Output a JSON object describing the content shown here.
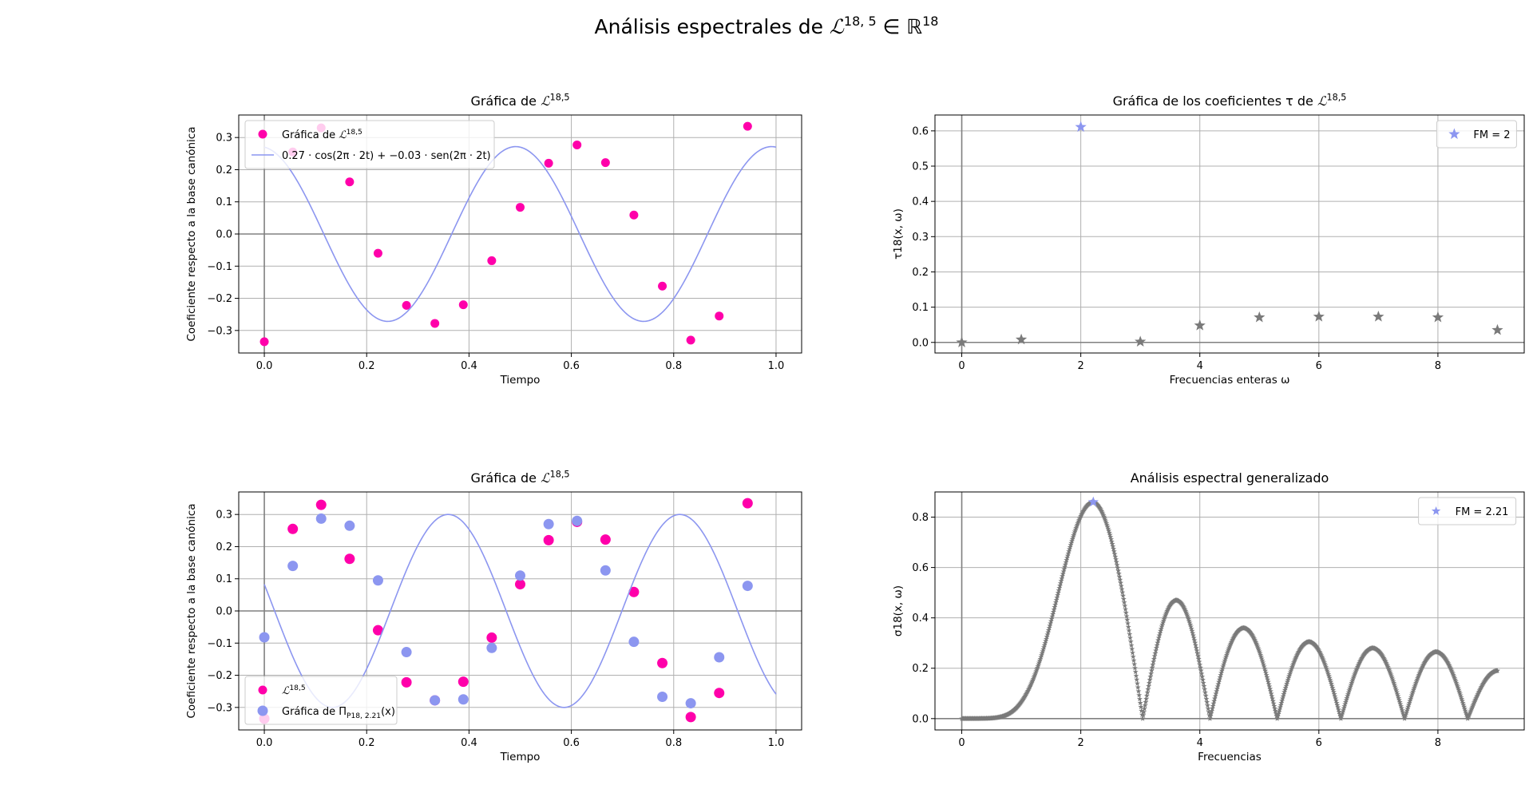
{
  "figure": {
    "suptitle_prefix": "Análisis espectrales de ",
    "suptitle_math": "ℒ",
    "suptitle_sup": "18, 5",
    "suptitle_mid": " ∈ ℝ",
    "suptitle_sup2": "18"
  },
  "colors": {
    "magenta": "#ff00aa",
    "blue": "#8c96f0",
    "gray": "#7a7a7a",
    "axisline": "#808080",
    "grid": "#b0b0b0"
  },
  "chart_data": [
    {
      "type": "scatter",
      "title": "Gráfica de ℒ^{18,5}",
      "xlabel": "Tiempo",
      "ylabel": "Coeficiente respecto a la base canónica",
      "xlim": [
        -0.05,
        1.05
      ],
      "ylim": [
        -0.37,
        0.37
      ],
      "xticks": [
        0.0,
        0.2,
        0.4,
        0.6,
        0.8,
        1.0
      ],
      "xticklabels": [
        "0.0",
        "0.2",
        "0.4",
        "0.6",
        "0.8",
        "1.0"
      ],
      "yticks": [
        -0.3,
        -0.2,
        -0.1,
        0.0,
        0.1,
        0.2,
        0.3
      ],
      "yticklabels": [
        "−0.3",
        "−0.2",
        "−0.1",
        "0.0",
        "0.1",
        "0.2",
        "0.3"
      ],
      "grid": true,
      "legend_position": "upper left",
      "series": [
        {
          "name": "Gráfica de ℒ^{18,5}",
          "kind": "points",
          "color": "magenta",
          "x": [
            0.0,
            0.0556,
            0.1111,
            0.1667,
            0.2222,
            0.2778,
            0.3333,
            0.3889,
            0.4444,
            0.5,
            0.5556,
            0.6111,
            0.6667,
            0.7222,
            0.7778,
            0.8333,
            0.8889,
            0.9444
          ],
          "y": [
            -0.335,
            0.255,
            0.33,
            0.162,
            -0.06,
            -0.222,
            -0.278,
            -0.22,
            -0.083,
            0.083,
            0.22,
            0.277,
            0.222,
            0.059,
            -0.162,
            -0.33,
            -0.255,
            0.335
          ]
        },
        {
          "name": "0.27 · cos(2π · 2t) + −0.03 · sen(2π · 2t)",
          "kind": "curve",
          "color": "blue",
          "amp_cos": 0.27,
          "amp_sin": -0.03,
          "freq": 2,
          "x_range": [
            0,
            1
          ]
        }
      ]
    },
    {
      "type": "scatter",
      "title": "Gráfica de los coeficientes τ de ℒ^{18,5}",
      "xlabel": "Frecuencias enteras ω",
      "ylabel": "τ18(x, ω)",
      "xlim": [
        -0.45,
        9.45
      ],
      "ylim": [
        -0.03,
        0.645
      ],
      "xticks": [
        0,
        2,
        4,
        6,
        8
      ],
      "xticklabels": [
        "0",
        "2",
        "4",
        "6",
        "8"
      ],
      "yticks": [
        0.0,
        0.1,
        0.2,
        0.3,
        0.4,
        0.5,
        0.6
      ],
      "yticklabels": [
        "0.0",
        "0.1",
        "0.2",
        "0.3",
        "0.4",
        "0.5",
        "0.6"
      ],
      "grid": true,
      "legend_position": "upper right",
      "series": [
        {
          "name": "",
          "kind": "stars",
          "color": "gray",
          "x": [
            0,
            1,
            3,
            4,
            5,
            6,
            7,
            8,
            9
          ],
          "y": [
            0.0,
            0.008,
            0.002,
            0.048,
            0.071,
            0.073,
            0.073,
            0.071,
            0.035
          ]
        },
        {
          "name": "FM = 2",
          "kind": "stars",
          "color": "blue",
          "x": [
            2
          ],
          "y": [
            0.611
          ]
        }
      ]
    },
    {
      "type": "scatter",
      "title": "Gráfica de ℒ^{18,5}",
      "xlabel": "Tiempo",
      "ylabel": "Coeficiente respecto a la base canónica",
      "xlim": [
        -0.05,
        1.05
      ],
      "ylim": [
        -0.37,
        0.37
      ],
      "xticks": [
        0.0,
        0.2,
        0.4,
        0.6,
        0.8,
        1.0
      ],
      "xticklabels": [
        "0.0",
        "0.2",
        "0.4",
        "0.6",
        "0.8",
        "1.0"
      ],
      "yticks": [
        -0.3,
        -0.2,
        -0.1,
        0.0,
        0.1,
        0.2,
        0.3
      ],
      "yticklabels": [
        "−0.3",
        "−0.2",
        "−0.1",
        "0.0",
        "0.1",
        "0.2",
        "0.3"
      ],
      "grid": true,
      "legend_position": "lower left",
      "series": [
        {
          "name": "ℒ^{18,5}",
          "kind": "points",
          "color": "magenta",
          "x": [
            0.0,
            0.0556,
            0.1111,
            0.1667,
            0.2222,
            0.2778,
            0.3333,
            0.3889,
            0.4444,
            0.5,
            0.5556,
            0.6111,
            0.6667,
            0.7222,
            0.7778,
            0.8333,
            0.8889,
            0.9444
          ],
          "y": [
            -0.335,
            0.255,
            0.33,
            0.162,
            -0.06,
            -0.222,
            -0.278,
            -0.22,
            -0.083,
            0.083,
            0.22,
            0.277,
            0.222,
            0.059,
            -0.162,
            -0.33,
            -0.255,
            0.335
          ]
        },
        {
          "name": "Gráfica de Π_{P18, 2.21}(x)",
          "kind": "points",
          "color": "blue",
          "x": [
            0.0,
            0.0556,
            0.1111,
            0.1667,
            0.2222,
            0.2778,
            0.3333,
            0.3889,
            0.4444,
            0.5,
            0.5556,
            0.6111,
            0.6667,
            0.7222,
            0.7778,
            0.8333,
            0.8889,
            0.9444
          ],
          "y": [
            -0.082,
            0.14,
            0.287,
            0.265,
            0.095,
            -0.128,
            -0.278,
            -0.275,
            -0.115,
            0.11,
            0.27,
            0.28,
            0.126,
            -0.096,
            -0.267,
            -0.287,
            -0.144,
            0.078
          ]
        },
        {
          "name": "",
          "kind": "curve",
          "color": "blue",
          "amp": 0.3,
          "freq": 2.21,
          "phase_deg": -16,
          "x_range": [
            0,
            1
          ]
        }
      ]
    },
    {
      "type": "scatter",
      "title": "Análisis espectral generalizado",
      "xlabel": "Frecuencias",
      "ylabel": "σ18(x, ω)",
      "xlim": [
        -0.45,
        9.45
      ],
      "ylim": [
        -0.045,
        0.9
      ],
      "xticks": [
        0,
        2,
        4,
        6,
        8
      ],
      "xticklabels": [
        "0",
        "2",
        "4",
        "6",
        "8"
      ],
      "yticks": [
        0.0,
        0.2,
        0.4,
        0.6,
        0.8
      ],
      "yticklabels": [
        "0.0",
        "0.2",
        "0.4",
        "0.6",
        "0.8"
      ],
      "grid": true,
      "legend_position": "upper right",
      "series": [
        {
          "name": "",
          "kind": "dense-stars",
          "color": "gray",
          "x_range": [
            0,
            9
          ],
          "peaks": [
            {
              "x": 2.21,
              "y": 0.86
            },
            {
              "x": 3.6,
              "y": 0.47
            },
            {
              "x": 4.72,
              "y": 0.36
            },
            {
              "x": 5.84,
              "y": 0.305
            },
            {
              "x": 6.93,
              "y": 0.28
            },
            {
              "x": 8.02,
              "y": 0.265
            }
          ],
          "zeros": [
            3.04,
            4.17,
            5.3,
            6.37,
            7.44,
            8.5
          ],
          "end_y": 0.19
        },
        {
          "name": "FM = 2.21",
          "kind": "stars",
          "color": "blue",
          "x": [
            2.21
          ],
          "y": [
            0.86
          ]
        }
      ]
    }
  ]
}
